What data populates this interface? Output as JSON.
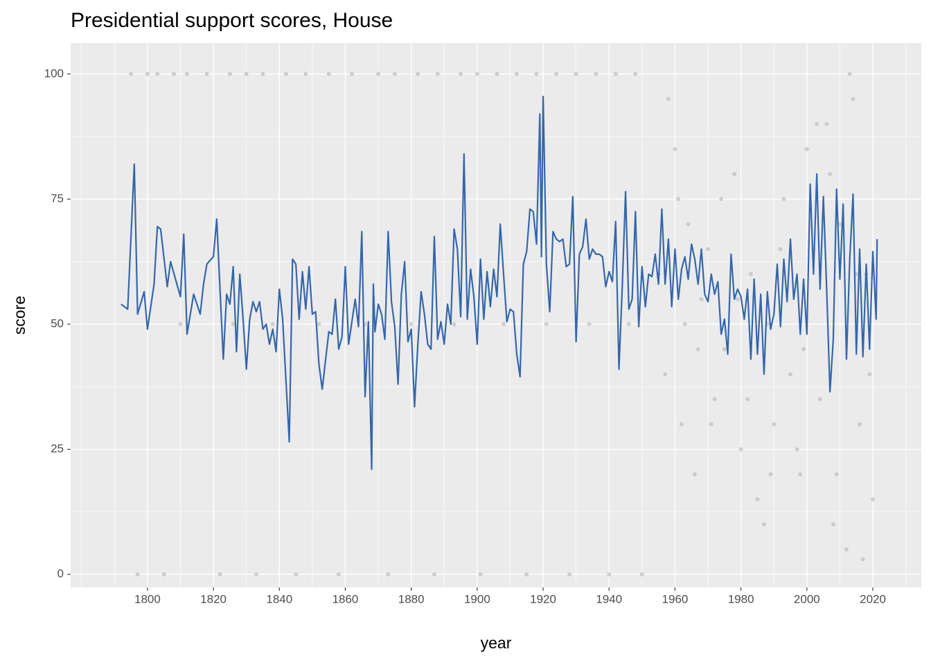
{
  "chart_data": {
    "type": "line",
    "title": "Presidential support scores, House",
    "x_label": "year",
    "y_label": "score",
    "xlim": [
      1776.7,
      2034.7
    ],
    "ylim": [
      -2.6,
      106.2
    ],
    "xticks": [
      1800,
      1820,
      1840,
      1860,
      1880,
      1900,
      1920,
      1940,
      1960,
      1980,
      2000,
      2020
    ],
    "minor_xticks": [
      1780,
      1790,
      1810,
      1830,
      1850,
      1870,
      1890,
      1910,
      1930,
      1950,
      1970,
      1990,
      2010,
      2030
    ],
    "yticks": [
      0,
      25,
      50,
      75,
      100
    ],
    "minor_yticks": [
      12.5,
      37.5,
      62.5,
      87.5
    ],
    "grid": true,
    "points": {
      "color": "#bebebe",
      "x": [
        1795,
        1800,
        1803,
        1808,
        1812,
        1818,
        1825,
        1830,
        1835,
        1842,
        1848,
        1855,
        1862,
        1870,
        1875,
        1882,
        1888,
        1895,
        1900,
        1906,
        1912,
        1918,
        1924,
        1930,
        1936,
        1942,
        1948,
        1797,
        1805,
        1822,
        1833,
        1845,
        1858,
        1873,
        1887,
        1901,
        1915,
        1928,
        1940,
        1950,
        1810,
        1826,
        1838,
        1852,
        1866,
        1880,
        1893,
        1908,
        1921,
        1934,
        1946,
        1955,
        1957,
        1960,
        1962,
        1964,
        1966,
        1968,
        1970,
        1972,
        1975,
        1978,
        1980,
        1983,
        1985,
        1988,
        1990,
        1993,
        1995,
        1998,
        2000,
        2002,
        2004,
        2006,
        2008,
        2010,
        2012,
        2014,
        2016,
        2018,
        2020,
        1958,
        1963,
        1967,
        1974,
        1982,
        1987,
        1992,
        1997,
        2003,
        2009,
        2013,
        2017,
        1961,
        1971,
        1979,
        1989,
        1999,
        2007,
        2015,
        2019
      ],
      "y": [
        100,
        100,
        100,
        100,
        100,
        100,
        100,
        100,
        100,
        100,
        100,
        100,
        100,
        100,
        100,
        100,
        100,
        100,
        100,
        100,
        100,
        100,
        100,
        100,
        100,
        100,
        100,
        0,
        0,
        0,
        0,
        0,
        0,
        0,
        0,
        0,
        0,
        0,
        0,
        0,
        50,
        50,
        50,
        50,
        50,
        50,
        50,
        50,
        50,
        50,
        50,
        60,
        40,
        85,
        30,
        70,
        20,
        55,
        65,
        35,
        45,
        80,
        25,
        60,
        15,
        50,
        30,
        75,
        40,
        20,
        85,
        65,
        35,
        90,
        10,
        70,
        5,
        95,
        30,
        60,
        15,
        95,
        50,
        45,
        75,
        35,
        10,
        65,
        25,
        90,
        20,
        100,
        3,
        75,
        30,
        55,
        20,
        45,
        80,
        60,
        40
      ]
    },
    "series": [
      {
        "color": "#3466ab",
        "x": [
          1792,
          1794,
          1796,
          1797,
          1799,
          1800,
          1802,
          1803,
          1804,
          1806,
          1807,
          1810,
          1811,
          1812,
          1814,
          1816,
          1817,
          1818,
          1820,
          1821,
          1823,
          1824,
          1825,
          1826,
          1827,
          1828,
          1829,
          1830,
          1831,
          1832,
          1833,
          1834,
          1835,
          1836,
          1837,
          1838,
          1839,
          1840,
          1841,
          1843,
          1844,
          1845,
          1846,
          1847,
          1848,
          1849,
          1850,
          1851,
          1852,
          1853,
          1855,
          1856,
          1857,
          1858,
          1859,
          1860,
          1861,
          1863,
          1864,
          1865,
          1866,
          1867,
          1868,
          1868.5,
          1869,
          1870,
          1871,
          1872,
          1873,
          1874,
          1875,
          1876,
          1877,
          1878,
          1879,
          1880,
          1881,
          1882,
          1883,
          1884,
          1885,
          1886,
          1887,
          1888,
          1889,
          1890,
          1891,
          1892,
          1893,
          1894,
          1895,
          1896,
          1897,
          1898,
          1899,
          1900,
          1901,
          1902,
          1903,
          1904,
          1905,
          1906,
          1907,
          1908,
          1909,
          1910,
          1911,
          1912,
          1913,
          1914,
          1915,
          1916,
          1917,
          1918,
          1919,
          1919.5,
          1920,
          1921,
          1922,
          1923,
          1924,
          1925,
          1926,
          1927,
          1928,
          1929,
          1930,
          1931,
          1932,
          1933,
          1934,
          1935,
          1936,
          1937,
          1938,
          1939,
          1940,
          1941,
          1942,
          1943,
          1944,
          1945,
          1946,
          1947,
          1948,
          1949,
          1950,
          1951,
          1952,
          1953,
          1954,
          1955,
          1956,
          1957,
          1958,
          1959,
          1960,
          1961,
          1962,
          1963,
          1964,
          1965,
          1966,
          1967,
          1968,
          1969,
          1970,
          1971,
          1972,
          1973,
          1974,
          1975,
          1976,
          1977,
          1978,
          1979,
          1980,
          1981,
          1982,
          1983,
          1984,
          1985,
          1986,
          1987,
          1988,
          1989,
          1990,
          1991,
          1992,
          1993,
          1994,
          1995,
          1996,
          1997,
          1998,
          1999,
          2000,
          2001,
          2002,
          2003,
          2004,
          2005,
          2006,
          2007,
          2008,
          2009,
          2010,
          2011,
          2012,
          2013,
          2014,
          2015,
          2016,
          2017,
          2018,
          2019,
          2020,
          2021,
          2021.3
        ],
        "values": [
          54,
          53,
          82,
          52,
          56.5,
          49,
          58,
          69.5,
          69,
          57.5,
          62.5,
          55.5,
          68,
          48,
          56,
          52,
          58,
          62,
          63.5,
          71,
          43,
          56,
          54,
          61.5,
          44.5,
          60,
          51,
          41,
          51,
          54.5,
          52.5,
          54.5,
          49,
          50,
          46,
          49,
          44.5,
          57,
          51,
          26.5,
          63,
          62,
          51,
          60.5,
          53,
          61.5,
          52,
          52.5,
          42,
          37,
          48.5,
          48,
          55,
          45,
          47.5,
          61.5,
          46,
          55,
          49.5,
          68.5,
          35.5,
          50.5,
          21,
          58,
          48.5,
          54,
          52,
          47,
          68.5,
          54.5,
          49.5,
          38,
          56,
          62.5,
          46.5,
          49,
          33.5,
          46,
          56.5,
          52,
          46,
          45,
          67.5,
          47,
          50.5,
          46,
          54,
          50,
          69,
          65,
          51.5,
          84,
          51,
          61,
          55.5,
          46,
          63,
          51,
          60.5,
          53.5,
          61,
          55.5,
          70,
          60,
          50.5,
          53,
          52.5,
          44,
          39.5,
          62,
          64.5,
          73,
          72.5,
          66,
          92,
          63.5,
          95.5,
          62,
          52.5,
          68.5,
          67,
          66.5,
          67,
          61.5,
          62,
          75.5,
          46.5,
          64,
          65.5,
          71,
          63,
          65,
          64,
          64,
          63.5,
          57.5,
          60.5,
          58.5,
          70.5,
          41,
          57.5,
          76.5,
          53,
          55,
          72.5,
          49.5,
          61.5,
          53.5,
          60,
          59.5,
          64,
          58,
          73,
          58,
          67,
          53.5,
          65,
          55,
          61,
          63.5,
          59,
          66,
          63,
          58,
          65,
          56,
          54.5,
          60,
          56,
          58.5,
          48,
          51,
          44,
          64,
          55,
          57,
          55.5,
          51,
          57,
          43,
          59,
          44,
          56,
          40,
          56.5,
          49,
          52,
          62,
          49.5,
          63,
          54.5,
          67,
          55,
          60,
          48,
          59,
          48,
          78,
          60,
          80,
          57,
          75.5,
          57,
          36.5,
          47,
          77,
          59,
          74,
          43,
          63,
          76,
          44,
          65,
          43.5,
          62,
          45,
          64.5,
          51,
          67
        ]
      }
    ]
  }
}
